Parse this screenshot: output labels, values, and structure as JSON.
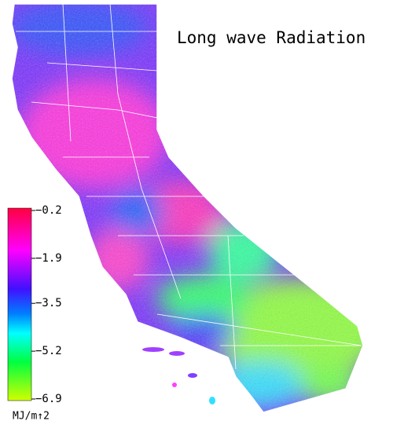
{
  "title": "Long wave Radiation",
  "legend": {
    "lim": [
      -0.2,
      -6.9
    ],
    "ticks": [
      {
        "value": -0.2,
        "label": "−0.2"
      },
      {
        "value": -1.9,
        "label": "−1.9"
      },
      {
        "value": -3.5,
        "label": "−3.5"
      },
      {
        "value": -5.2,
        "label": "−5.2"
      },
      {
        "value": -6.9,
        "label": "−6.9"
      }
    ],
    "unit": "MJ/m↑2"
  }
}
